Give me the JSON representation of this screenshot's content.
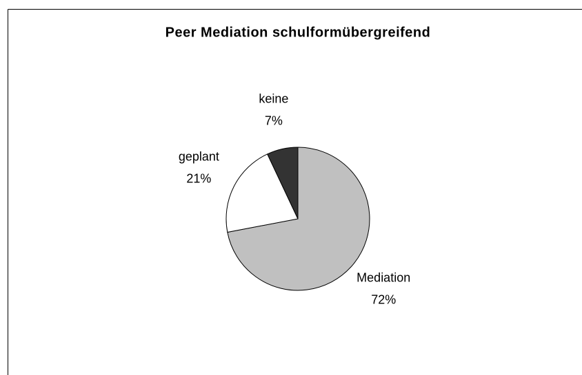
{
  "chart_data": {
    "type": "pie",
    "title": "Peer Mediation schulformübergreifend",
    "categories": [
      "Mediation",
      "geplant",
      "keine"
    ],
    "values": [
      72,
      21,
      7
    ],
    "value_labels": [
      "72%",
      "21%",
      "7%"
    ],
    "colors": [
      "#c0c0c0",
      "#ffffff",
      "#333333"
    ]
  }
}
